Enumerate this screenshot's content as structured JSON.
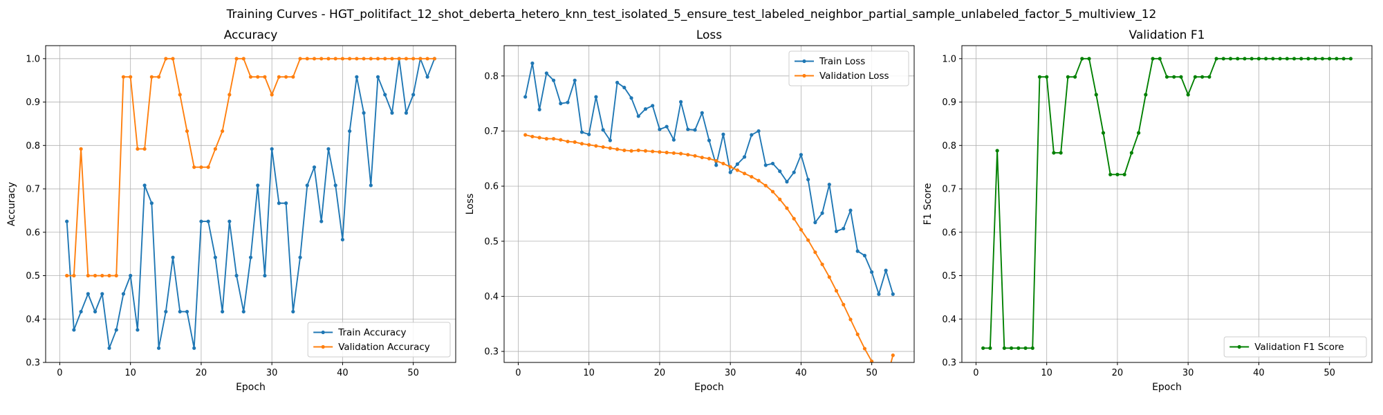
{
  "figure": {
    "title": "Training Curves - HGT_politifact_12_shot_deberta_hetero_knn_test_isolated_5_ensure_test_labeled_neighbor_partial_sample_unlabeled_factor_5_multiview_12"
  },
  "chart_data": [
    {
      "type": "line",
      "title": "Accuracy",
      "xlabel": "Epoch",
      "ylabel": "Accuracy",
      "xlim": [
        -2,
        56
      ],
      "ylim": [
        0.3,
        1.03
      ],
      "xticks": [
        0,
        10,
        20,
        30,
        40,
        50
      ],
      "yticks": [
        0.3,
        0.4,
        0.5,
        0.6,
        0.7,
        0.8,
        0.9,
        1.0
      ],
      "grid": true,
      "legend_position": "lower-right",
      "x": [
        1,
        2,
        3,
        4,
        5,
        6,
        7,
        8,
        9,
        10,
        11,
        12,
        13,
        14,
        15,
        16,
        17,
        18,
        19,
        20,
        21,
        22,
        23,
        24,
        25,
        26,
        27,
        28,
        29,
        30,
        31,
        32,
        33,
        34,
        35,
        36,
        37,
        38,
        39,
        40,
        41,
        42,
        43,
        44,
        45,
        46,
        47,
        48,
        49,
        50,
        51,
        52,
        53
      ],
      "series": [
        {
          "name": "Train Accuracy",
          "color": "#1f77b4",
          "values": [
            0.625,
            0.375,
            0.417,
            0.458,
            0.417,
            0.458,
            0.333,
            0.375,
            0.458,
            0.5,
            0.375,
            0.708,
            0.667,
            0.333,
            0.417,
            0.542,
            0.417,
            0.417,
            0.333,
            0.625,
            0.625,
            0.542,
            0.417,
            0.625,
            0.5,
            0.417,
            0.542,
            0.708,
            0.5,
            0.792,
            0.667,
            0.667,
            0.417,
            0.542,
            0.708,
            0.75,
            0.625,
            0.792,
            0.708,
            0.583,
            0.833,
            0.958,
            0.875,
            0.708,
            0.958,
            0.917,
            0.875,
            1.0,
            0.875,
            0.917,
            1.0,
            0.958,
            1.0
          ]
        },
        {
          "name": "Validation Accuracy",
          "color": "#ff7f0e",
          "values": [
            0.5,
            0.5,
            0.792,
            0.5,
            0.5,
            0.5,
            0.5,
            0.5,
            0.958,
            0.958,
            0.792,
            0.792,
            0.958,
            0.958,
            1.0,
            1.0,
            0.917,
            0.833,
            0.75,
            0.75,
            0.75,
            0.792,
            0.833,
            0.917,
            1.0,
            1.0,
            0.958,
            0.958,
            0.958,
            0.917,
            0.958,
            0.958,
            0.958,
            1.0,
            1.0,
            1.0,
            1.0,
            1.0,
            1.0,
            1.0,
            1.0,
            1.0,
            1.0,
            1.0,
            1.0,
            1.0,
            1.0,
            1.0,
            1.0,
            1.0,
            1.0,
            1.0,
            1.0
          ]
        }
      ]
    },
    {
      "type": "line",
      "title": "Loss",
      "xlabel": "Epoch",
      "ylabel": "Loss",
      "xlim": [
        -2,
        56
      ],
      "ylim": [
        0.28,
        0.855
      ],
      "xticks": [
        0,
        10,
        20,
        30,
        40,
        50
      ],
      "yticks": [
        0.3,
        0.4,
        0.5,
        0.6,
        0.7,
        0.8
      ],
      "grid": true,
      "legend_position": "upper-right",
      "x": [
        1,
        2,
        3,
        4,
        5,
        6,
        7,
        8,
        9,
        10,
        11,
        12,
        13,
        14,
        15,
        16,
        17,
        18,
        19,
        20,
        21,
        22,
        23,
        24,
        25,
        26,
        27,
        28,
        29,
        30,
        31,
        32,
        33,
        34,
        35,
        36,
        37,
        38,
        39,
        40,
        41,
        42,
        43,
        44,
        45,
        46,
        47,
        48,
        49,
        50,
        51,
        52,
        53
      ],
      "series": [
        {
          "name": "Train Loss",
          "color": "#1f77b4",
          "values": [
            0.762,
            0.823,
            0.739,
            0.805,
            0.792,
            0.75,
            0.752,
            0.792,
            0.698,
            0.694,
            0.762,
            0.702,
            0.683,
            0.788,
            0.779,
            0.76,
            0.727,
            0.74,
            0.746,
            0.703,
            0.708,
            0.684,
            0.753,
            0.703,
            0.702,
            0.733,
            0.683,
            0.638,
            0.694,
            0.625,
            0.64,
            0.653,
            0.693,
            0.7,
            0.638,
            0.641,
            0.627,
            0.608,
            0.625,
            0.657,
            0.612,
            0.534,
            0.551,
            0.603,
            0.518,
            0.523,
            0.556,
            0.482,
            0.474,
            0.444,
            0.404,
            0.447,
            0.404
          ]
        },
        {
          "name": "Validation Loss",
          "color": "#ff7f0e",
          "values": [
            0.693,
            0.69,
            0.688,
            0.686,
            0.686,
            0.684,
            0.681,
            0.68,
            0.677,
            0.675,
            0.673,
            0.671,
            0.669,
            0.667,
            0.665,
            0.664,
            0.665,
            0.664,
            0.663,
            0.662,
            0.661,
            0.66,
            0.659,
            0.657,
            0.655,
            0.652,
            0.65,
            0.646,
            0.641,
            0.635,
            0.629,
            0.623,
            0.617,
            0.61,
            0.601,
            0.59,
            0.576,
            0.56,
            0.541,
            0.521,
            0.502,
            0.48,
            0.458,
            0.435,
            0.41,
            0.385,
            0.358,
            0.331,
            0.305,
            0.282,
            0.262,
            0.245,
            0.293
          ]
        }
      ]
    },
    {
      "type": "line",
      "title": "Validation F1",
      "xlabel": "Epoch",
      "ylabel": "F1 Score",
      "xlim": [
        -2,
        56
      ],
      "ylim": [
        0.3,
        1.03
      ],
      "xticks": [
        0,
        10,
        20,
        30,
        40,
        50
      ],
      "yticks": [
        0.3,
        0.4,
        0.5,
        0.6,
        0.7,
        0.8,
        0.9,
        1.0
      ],
      "grid": true,
      "legend_position": "lower-right",
      "x": [
        1,
        2,
        3,
        4,
        5,
        6,
        7,
        8,
        9,
        10,
        11,
        12,
        13,
        14,
        15,
        16,
        17,
        18,
        19,
        20,
        21,
        22,
        23,
        24,
        25,
        26,
        27,
        28,
        29,
        30,
        31,
        32,
        33,
        34,
        35,
        36,
        37,
        38,
        39,
        40,
        41,
        42,
        43,
        44,
        45,
        46,
        47,
        48,
        49,
        50,
        51,
        52,
        53
      ],
      "series": [
        {
          "name": "Validation F1 Score",
          "color": "#008000",
          "values": [
            0.333,
            0.333,
            0.788,
            0.333,
            0.333,
            0.333,
            0.333,
            0.333,
            0.958,
            0.958,
            0.783,
            0.783,
            0.958,
            0.958,
            1.0,
            1.0,
            0.917,
            0.829,
            0.733,
            0.733,
            0.733,
            0.783,
            0.829,
            0.917,
            1.0,
            1.0,
            0.958,
            0.958,
            0.958,
            0.917,
            0.958,
            0.958,
            0.958,
            1.0,
            1.0,
            1.0,
            1.0,
            1.0,
            1.0,
            1.0,
            1.0,
            1.0,
            1.0,
            1.0,
            1.0,
            1.0,
            1.0,
            1.0,
            1.0,
            1.0,
            1.0,
            1.0,
            1.0
          ]
        }
      ]
    }
  ]
}
